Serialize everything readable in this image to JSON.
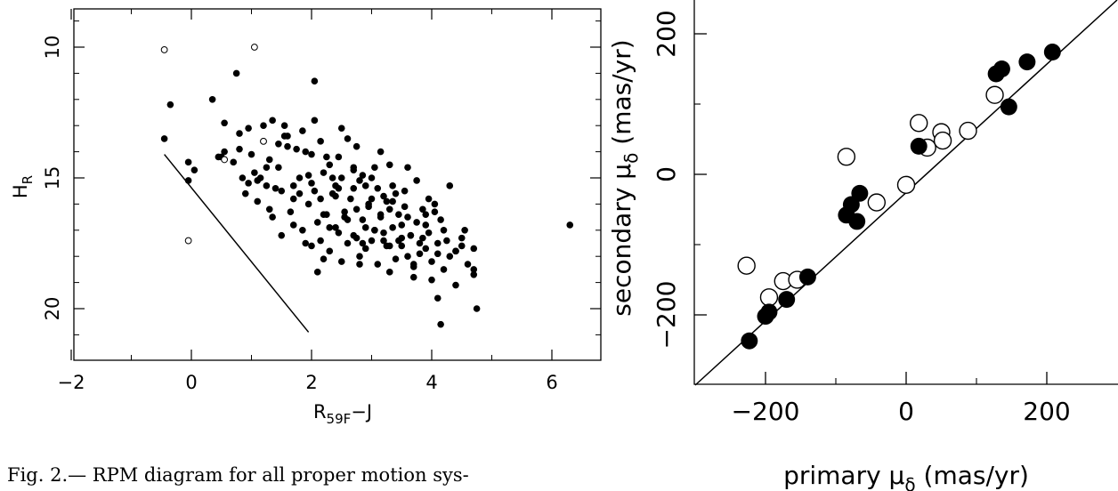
{
  "caption": "Fig. 2.— RPM diagram for all proper motion sys-",
  "chart_data": [
    {
      "type": "scatter",
      "title": "",
      "xlabel": "R",
      "xlabel_sub": "59F",
      "xlabel_tail": "−J",
      "ylabel": "H",
      "ylabel_sub": "R",
      "xlim": [
        -2,
        7
      ],
      "ylim": [
        22,
        9
      ],
      "y_inverted": true,
      "grid": false,
      "xticks": [
        -2,
        0,
        2,
        4,
        6
      ],
      "xtick_labels": [
        "−2",
        "0",
        "2",
        "4",
        "6"
      ],
      "yticks": [
        10,
        15,
        20
      ],
      "ytick_labels": [
        "10",
        "15",
        "20"
      ],
      "series": [
        {
          "marker": "filled",
          "x": [
            -0.35,
            -0.45,
            -0.05,
            0.05,
            0.35,
            0.45,
            0.75,
            1.2,
            1.35,
            2.05,
            2.1,
            0.7,
            0.55,
            0.5,
            0.85,
            1.05,
            1.25,
            1.45,
            1.75,
            1.95,
            0.9,
            1.1,
            1.5,
            1.7,
            2.2,
            2.5,
            0.8,
            1.0,
            1.3,
            1.6,
            1.9,
            2.3,
            2.7,
            0.95,
            1.15,
            1.4,
            1.8,
            2.0,
            2.4,
            2.8,
            3.1,
            0.8,
            1.2,
            1.55,
            1.85,
            2.15,
            2.45,
            2.75,
            3.05,
            3.35,
            1.1,
            1.3,
            1.7,
            2.05,
            2.35,
            2.65,
            2.95,
            3.25,
            3.55,
            3.85,
            1.35,
            1.65,
            1.95,
            2.25,
            2.55,
            2.85,
            3.15,
            3.45,
            3.75,
            4.05,
            1.5,
            1.85,
            2.15,
            2.45,
            2.75,
            3.05,
            3.35,
            3.65,
            3.95,
            4.25,
            1.7,
            2.0,
            2.3,
            2.6,
            2.9,
            3.2,
            3.5,
            3.8,
            4.1,
            4.4,
            1.9,
            2.2,
            2.5,
            2.8,
            3.1,
            3.4,
            3.7,
            4.0,
            4.3,
            4.6,
            2.1,
            2.4,
            2.7,
            3.0,
            3.3,
            3.6,
            3.9,
            4.2,
            4.5,
            2.4,
            2.7,
            3.0,
            3.3,
            3.6,
            3.9,
            4.2,
            4.5,
            4.7,
            2.2,
            2.6,
            2.9,
            3.2,
            3.5,
            3.8,
            4.1,
            4.4,
            4.7,
            2.8,
            3.3,
            3.7,
            4.0,
            4.4,
            4.7,
            4.1,
            4.15,
            4.75,
            6.3,
            -0.05,
            0.55,
            0.95,
            1.6,
            2.05,
            2.5,
            3.15,
            3.6,
            4.3,
            2.35,
            2.85,
            3.4,
            3.95,
            1.55,
            2.6,
            3.3,
            3.75,
            2.9,
            1.45,
            2.25,
            3.0,
            3.55,
            4.05,
            2.0,
            2.7,
            3.35,
            4.15,
            1.25,
            1.8,
            2.45,
            3.2,
            3.9,
            4.55,
            2.15,
            2.95,
            3.5,
            2.75,
            3.15,
            3.65,
            2.55,
            3.05,
            3.45,
            3.85,
            2.3,
            2.85,
            3.25,
            3.7
          ],
          "y": [
            12.2,
            13.5,
            15.1,
            14.7,
            12.0,
            14.2,
            11.0,
            13.6,
            12.8,
            11.3,
            18.6,
            14.4,
            12.9,
            14.2,
            15.0,
            14.8,
            15.3,
            14.6,
            13.9,
            14.9,
            15.6,
            15.1,
            15.5,
            15.3,
            14.8,
            15.0,
            13.9,
            14.1,
            14.3,
            13.8,
            14.0,
            14.5,
            14.6,
            15.2,
            15.0,
            15.4,
            15.6,
            15.2,
            15.7,
            15.1,
            15.4,
            13.3,
            13.0,
            13.4,
            13.2,
            13.6,
            14.2,
            13.8,
            14.6,
            15.3,
            15.9,
            16.2,
            15.8,
            15.5,
            15.6,
            15.8,
            16.0,
            15.9,
            16.1,
            16.2,
            16.5,
            16.3,
            16.0,
            16.4,
            16.3,
            16.6,
            16.5,
            16.4,
            16.7,
            16.3,
            17.2,
            17.0,
            17.4,
            17.1,
            17.3,
            17.0,
            16.9,
            17.2,
            17.1,
            17.4,
            16.8,
            17.6,
            17.8,
            17.5,
            17.7,
            17.4,
            17.6,
            17.9,
            17.5,
            17.8,
            17.5,
            18.1,
            18.2,
            18.0,
            18.3,
            18.1,
            18.4,
            18.2,
            18.0,
            18.3,
            16.7,
            16.9,
            17.2,
            17.4,
            17.6,
            18.0,
            17.7,
            18.5,
            17.6,
            15.3,
            15.4,
            15.8,
            16.2,
            16.5,
            16.8,
            17.0,
            17.3,
            17.7,
            16.4,
            16.6,
            16.9,
            17.1,
            17.3,
            17.5,
            17.9,
            17.8,
            18.5,
            18.3,
            18.6,
            18.8,
            18.9,
            19.1,
            18.7,
            19.6,
            20.6,
            20.0,
            16.8,
            14.4,
            14.0,
            13.1,
            13.4,
            12.8,
            13.1,
            14.0,
            14.6,
            15.3,
            15.0,
            14.9,
            15.6,
            15.8,
            13.0,
            13.5,
            14.5,
            15.1,
            15.3,
            13.7,
            14.2,
            15.0,
            15.5,
            16.0,
            14.1,
            14.7,
            15.9,
            16.6,
            14.6,
            15.0,
            15.4,
            15.7,
            16.4,
            17.0,
            15.8,
            16.1,
            16.8,
            16.2,
            16.4,
            17.2,
            16.5,
            17.0,
            17.4,
            17.3,
            16.9,
            17.5,
            17.6,
            18.3
          ]
        },
        {
          "marker": "open",
          "x": [
            -0.45,
            1.05,
            -0.05,
            1.2,
            0.55
          ],
          "y": [
            10.1,
            10.0,
            17.4,
            13.6,
            14.3
          ]
        }
      ],
      "lines": [
        {
          "x": [
            -0.45,
            1.95
          ],
          "y": [
            14.1,
            20.9
          ]
        }
      ]
    },
    {
      "type": "scatter",
      "title": "",
      "xlabel": "primary μ",
      "xlabel_sub": "δ",
      "xlabel_tail": " (mas/yr)",
      "ylabel": "secondary μ",
      "ylabel_sub": "δ",
      "ylabel_tail": " (mas/yr)",
      "xlim": [
        -300,
        300
      ],
      "ylim": [
        -300,
        250
      ],
      "grid": false,
      "xticks": [
        -200,
        0,
        200
      ],
      "xtick_labels": [
        "−200",
        "0",
        "200"
      ],
      "yticks": [
        -200,
        0,
        200
      ],
      "ytick_labels": [
        "−200",
        "0",
        "200"
      ],
      "series": [
        {
          "marker": "filled",
          "x": [
            -223,
            -200,
            -195,
            -170,
            -140,
            -85,
            -78,
            -70,
            -66,
            18,
            128,
            136,
            146,
            172,
            208
          ],
          "y": [
            -237,
            -202,
            -196,
            -178,
            -146,
            -58,
            -43,
            -67,
            -27,
            40,
            143,
            150,
            96,
            160,
            174
          ],
          "radius_units": 12
        },
        {
          "marker": "open",
          "x": [
            -227,
            -195,
            -175,
            -155,
            -85,
            -42,
            0,
            18,
            30,
            50,
            52,
            88,
            126
          ],
          "y": [
            -130,
            -175,
            -152,
            -150,
            25,
            -40,
            -15,
            73,
            38,
            60,
            48,
            62,
            113
          ],
          "radius_units": 12
        }
      ],
      "lines": [
        {
          "x": [
            -300,
            300
          ],
          "y": [
            -300,
            300
          ]
        }
      ]
    }
  ]
}
